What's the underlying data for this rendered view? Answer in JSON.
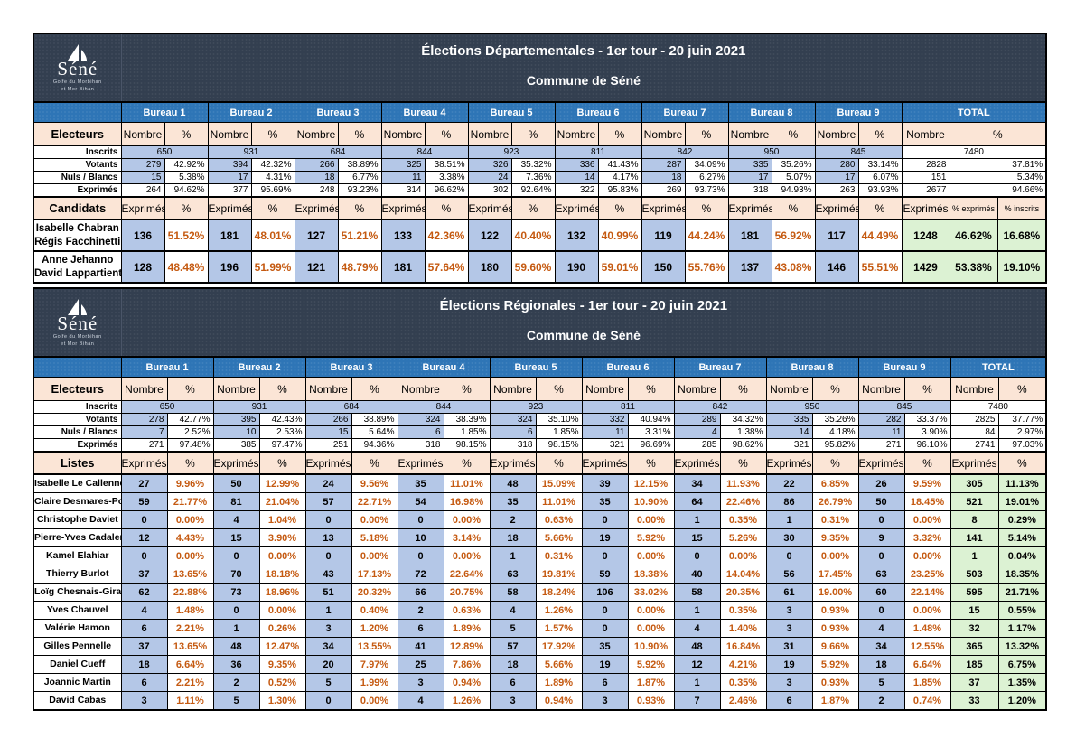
{
  "logo": {
    "name": "Séné",
    "subtitle_lines": [
      "Golfe du Morbihan",
      "et Mor Bihan"
    ]
  },
  "tables": [
    {
      "title": "Élections Départementales - 1er tour - 20 juin 2021",
      "subtitle": "Commune de Séné",
      "bureaus": [
        "Bureau 1",
        "Bureau 2",
        "Bureau 3",
        "Bureau 4",
        "Bureau 5",
        "Bureau 6",
        "Bureau 7",
        "Bureau 8",
        "Bureau 9"
      ],
      "total_label": "TOTAL",
      "electeurs": {
        "label": "Electeurs",
        "col_headers": [
          "Nombre",
          "%"
        ],
        "inscrits": {
          "label": "Inscrits",
          "values": [
            "650",
            "931",
            "684",
            "844",
            "923",
            "811",
            "842",
            "950",
            "845",
            "7480"
          ]
        },
        "rows": [
          {
            "label": "Votants",
            "shade": true,
            "nombre": [
              "279",
              "394",
              "266",
              "325",
              "326",
              "336",
              "287",
              "335",
              "280",
              "2828"
            ],
            "pct": [
              "42.92%",
              "42.32%",
              "38.89%",
              "38.51%",
              "35.32%",
              "41.43%",
              "34.09%",
              "35.26%",
              "33.14%",
              "37.81%"
            ]
          },
          {
            "label": "Nuls / Blancs",
            "shade": true,
            "nombre": [
              "15",
              "17",
              "18",
              "11",
              "24",
              "14",
              "18",
              "17",
              "17",
              "151"
            ],
            "pct": [
              "5.38%",
              "4.31%",
              "6.77%",
              "3.38%",
              "7.36%",
              "4.17%",
              "6.27%",
              "5.07%",
              "6.07%",
              "5.34%"
            ]
          },
          {
            "label": "Exprimés",
            "shade": false,
            "nombre": [
              "264",
              "377",
              "248",
              "314",
              "302",
              "322",
              "269",
              "318",
              "263",
              "2677"
            ],
            "pct": [
              "94.62%",
              "95.69%",
              "93.23%",
              "96.62%",
              "92.64%",
              "95.83%",
              "93.73%",
              "94.93%",
              "93.93%",
              "94.66%"
            ]
          }
        ]
      },
      "section": {
        "label": "Candidats",
        "col_headers": [
          "Exprimés",
          "%"
        ],
        "total_headers": [
          "Exprimés",
          "% exprimés",
          "% inscrits"
        ],
        "rows": [
          {
            "name_lines": [
              "Isabelle Chabran",
              "Régis Facchinetti"
            ],
            "exprimes": [
              "136",
              "181",
              "127",
              "133",
              "122",
              "132",
              "119",
              "181",
              "117"
            ],
            "pct": [
              "51.52%",
              "48.01%",
              "51.21%",
              "42.36%",
              "40.40%",
              "40.99%",
              "44.24%",
              "56.92%",
              "44.49%"
            ],
            "total": [
              "1248",
              "46.62%",
              "16.68%"
            ]
          },
          {
            "name_lines": [
              "Anne Jehanno",
              "David Lappartient"
            ],
            "exprimes": [
              "128",
              "196",
              "121",
              "181",
              "180",
              "190",
              "150",
              "137",
              "146"
            ],
            "pct": [
              "48.48%",
              "51.99%",
              "48.79%",
              "57.64%",
              "59.60%",
              "59.01%",
              "55.76%",
              "43.08%",
              "55.51%"
            ],
            "total": [
              "1429",
              "53.38%",
              "19.10%"
            ]
          }
        ]
      }
    },
    {
      "title": "Élections Régionales - 1er tour - 20 juin 2021",
      "subtitle": "Commune de Séné",
      "bureaus": [
        "Bureau 1",
        "Bureau 2",
        "Bureau 3",
        "Bureau 4",
        "Bureau 5",
        "Bureau 6",
        "Bureau 7",
        "Bureau 8",
        "Bureau 9"
      ],
      "total_label": "TOTAL",
      "electeurs": {
        "label": "Electeurs",
        "col_headers": [
          "Nombre",
          "%"
        ],
        "inscrits": {
          "label": "Inscrits",
          "values": [
            "650",
            "931",
            "684",
            "844",
            "923",
            "811",
            "842",
            "950",
            "845",
            "7480"
          ]
        },
        "rows": [
          {
            "label": "Votants",
            "shade": true,
            "nombre": [
              "278",
              "395",
              "266",
              "324",
              "324",
              "332",
              "289",
              "335",
              "282",
              "2825"
            ],
            "pct": [
              "42.77%",
              "42.43%",
              "38.89%",
              "38.39%",
              "35.10%",
              "40.94%",
              "34.32%",
              "35.26%",
              "33.37%",
              "37.77%"
            ]
          },
          {
            "label": "Nuls / Blancs",
            "shade": true,
            "nombre": [
              "7",
              "10",
              "15",
              "6",
              "6",
              "11",
              "4",
              "14",
              "11",
              "84"
            ],
            "pct": [
              "2.52%",
              "2.53%",
              "5.64%",
              "1.85%",
              "1.85%",
              "3.31%",
              "1.38%",
              "4.18%",
              "3.90%",
              "2.97%"
            ]
          },
          {
            "label": "Exprimés",
            "shade": false,
            "nombre": [
              "271",
              "385",
              "251",
              "318",
              "318",
              "321",
              "285",
              "321",
              "271",
              "2741"
            ],
            "pct": [
              "97.48%",
              "97.47%",
              "94.36%",
              "98.15%",
              "98.15%",
              "96.69%",
              "98.62%",
              "95.82%",
              "96.10%",
              "97.03%"
            ]
          }
        ]
      },
      "section": {
        "label": "Listes",
        "col_headers": [
          "Exprimés",
          "%"
        ],
        "total_headers": [
          "Exprimés",
          "%"
        ],
        "rows": [
          {
            "name_lines": [
              "Isabelle Le Callennec"
            ],
            "exprimes": [
              "27",
              "50",
              "24",
              "35",
              "48",
              "39",
              "34",
              "22",
              "26"
            ],
            "pct": [
              "9.96%",
              "12.99%",
              "9.56%",
              "11.01%",
              "15.09%",
              "12.15%",
              "11.93%",
              "6.85%",
              "9.59%"
            ],
            "total": [
              "305",
              "11.13%"
            ]
          },
          {
            "name_lines": [
              "Claire Desmares-Poirier"
            ],
            "exprimes": [
              "59",
              "81",
              "57",
              "54",
              "35",
              "35",
              "64",
              "86",
              "50"
            ],
            "pct": [
              "21.77%",
              "21.04%",
              "22.71%",
              "16.98%",
              "11.01%",
              "10.90%",
              "22.46%",
              "26.79%",
              "18.45%"
            ],
            "total": [
              "521",
              "19.01%"
            ]
          },
          {
            "name_lines": [
              "Christophe Daviet"
            ],
            "exprimes": [
              "0",
              "4",
              "0",
              "0",
              "2",
              "0",
              "1",
              "1",
              "0"
            ],
            "pct": [
              "0.00%",
              "1.04%",
              "0.00%",
              "0.00%",
              "0.63%",
              "0.00%",
              "0.35%",
              "0.31%",
              "0.00%"
            ],
            "total": [
              "8",
              "0.29%"
            ]
          },
          {
            "name_lines": [
              "Pierre-Yves Cadalen"
            ],
            "exprimes": [
              "12",
              "15",
              "13",
              "10",
              "18",
              "19",
              "15",
              "30",
              "9"
            ],
            "pct": [
              "4.43%",
              "3.90%",
              "5.18%",
              "3.14%",
              "5.66%",
              "5.92%",
              "5.26%",
              "9.35%",
              "3.32%"
            ],
            "total": [
              "141",
              "5.14%"
            ]
          },
          {
            "name_lines": [
              "Kamel Elahiar"
            ],
            "exprimes": [
              "0",
              "0",
              "0",
              "0",
              "1",
              "0",
              "0",
              "0",
              "0"
            ],
            "pct": [
              "0.00%",
              "0.00%",
              "0.00%",
              "0.00%",
              "0.31%",
              "0.00%",
              "0.00%",
              "0.00%",
              "0.00%"
            ],
            "total": [
              "1",
              "0.04%"
            ]
          },
          {
            "name_lines": [
              "Thierry Burlot"
            ],
            "exprimes": [
              "37",
              "70",
              "43",
              "72",
              "63",
              "59",
              "40",
              "56",
              "63"
            ],
            "pct": [
              "13.65%",
              "18.18%",
              "17.13%",
              "22.64%",
              "19.81%",
              "18.38%",
              "14.04%",
              "17.45%",
              "23.25%"
            ],
            "total": [
              "503",
              "18.35%"
            ]
          },
          {
            "name_lines": [
              "Loïg Chesnais-Girard"
            ],
            "exprimes": [
              "62",
              "73",
              "51",
              "66",
              "58",
              "106",
              "58",
              "61",
              "60"
            ],
            "pct": [
              "22.88%",
              "18.96%",
              "20.32%",
              "20.75%",
              "18.24%",
              "33.02%",
              "20.35%",
              "19.00%",
              "22.14%"
            ],
            "total": [
              "595",
              "21.71%"
            ]
          },
          {
            "name_lines": [
              "Yves Chauvel"
            ],
            "exprimes": [
              "4",
              "0",
              "1",
              "2",
              "4",
              "0",
              "1",
              "3",
              "0"
            ],
            "pct": [
              "1.48%",
              "0.00%",
              "0.40%",
              "0.63%",
              "1.26%",
              "0.00%",
              "0.35%",
              "0.93%",
              "0.00%"
            ],
            "total": [
              "15",
              "0.55%"
            ]
          },
          {
            "name_lines": [
              "Valérie Hamon"
            ],
            "exprimes": [
              "6",
              "1",
              "3",
              "6",
              "5",
              "0",
              "4",
              "3",
              "4"
            ],
            "pct": [
              "2.21%",
              "0.26%",
              "1.20%",
              "1.89%",
              "1.57%",
              "0.00%",
              "1.40%",
              "0.93%",
              "1.48%"
            ],
            "total": [
              "32",
              "1.17%"
            ]
          },
          {
            "name_lines": [
              "Gilles Pennelle"
            ],
            "exprimes": [
              "37",
              "48",
              "34",
              "41",
              "57",
              "35",
              "48",
              "31",
              "34"
            ],
            "pct": [
              "13.65%",
              "12.47%",
              "13.55%",
              "12.89%",
              "17.92%",
              "10.90%",
              "16.84%",
              "9.66%",
              "12.55%"
            ],
            "total": [
              "365",
              "13.32%"
            ]
          },
          {
            "name_lines": [
              "Daniel Cueff"
            ],
            "exprimes": [
              "18",
              "36",
              "20",
              "25",
              "18",
              "19",
              "12",
              "19",
              "18"
            ],
            "pct": [
              "6.64%",
              "9.35%",
              "7.97%",
              "7.86%",
              "5.66%",
              "5.92%",
              "4.21%",
              "5.92%",
              "6.64%"
            ],
            "total": [
              "185",
              "6.75%"
            ]
          },
          {
            "name_lines": [
              "Joannic Martin"
            ],
            "exprimes": [
              "6",
              "2",
              "5",
              "3",
              "6",
              "6",
              "1",
              "3",
              "5"
            ],
            "pct": [
              "2.21%",
              "0.52%",
              "1.99%",
              "0.94%",
              "1.89%",
              "1.87%",
              "0.35%",
              "0.93%",
              "1.85%"
            ],
            "total": [
              "37",
              "1.35%"
            ]
          },
          {
            "name_lines": [
              "David Cabas"
            ],
            "exprimes": [
              "3",
              "5",
              "0",
              "4",
              "3",
              "3",
              "7",
              "6",
              "2"
            ],
            "pct": [
              "1.11%",
              "1.30%",
              "0.00%",
              "1.26%",
              "0.94%",
              "0.93%",
              "2.46%",
              "1.87%",
              "0.74%"
            ],
            "total": [
              "33",
              "1.20%"
            ]
          }
        ]
      }
    }
  ]
}
